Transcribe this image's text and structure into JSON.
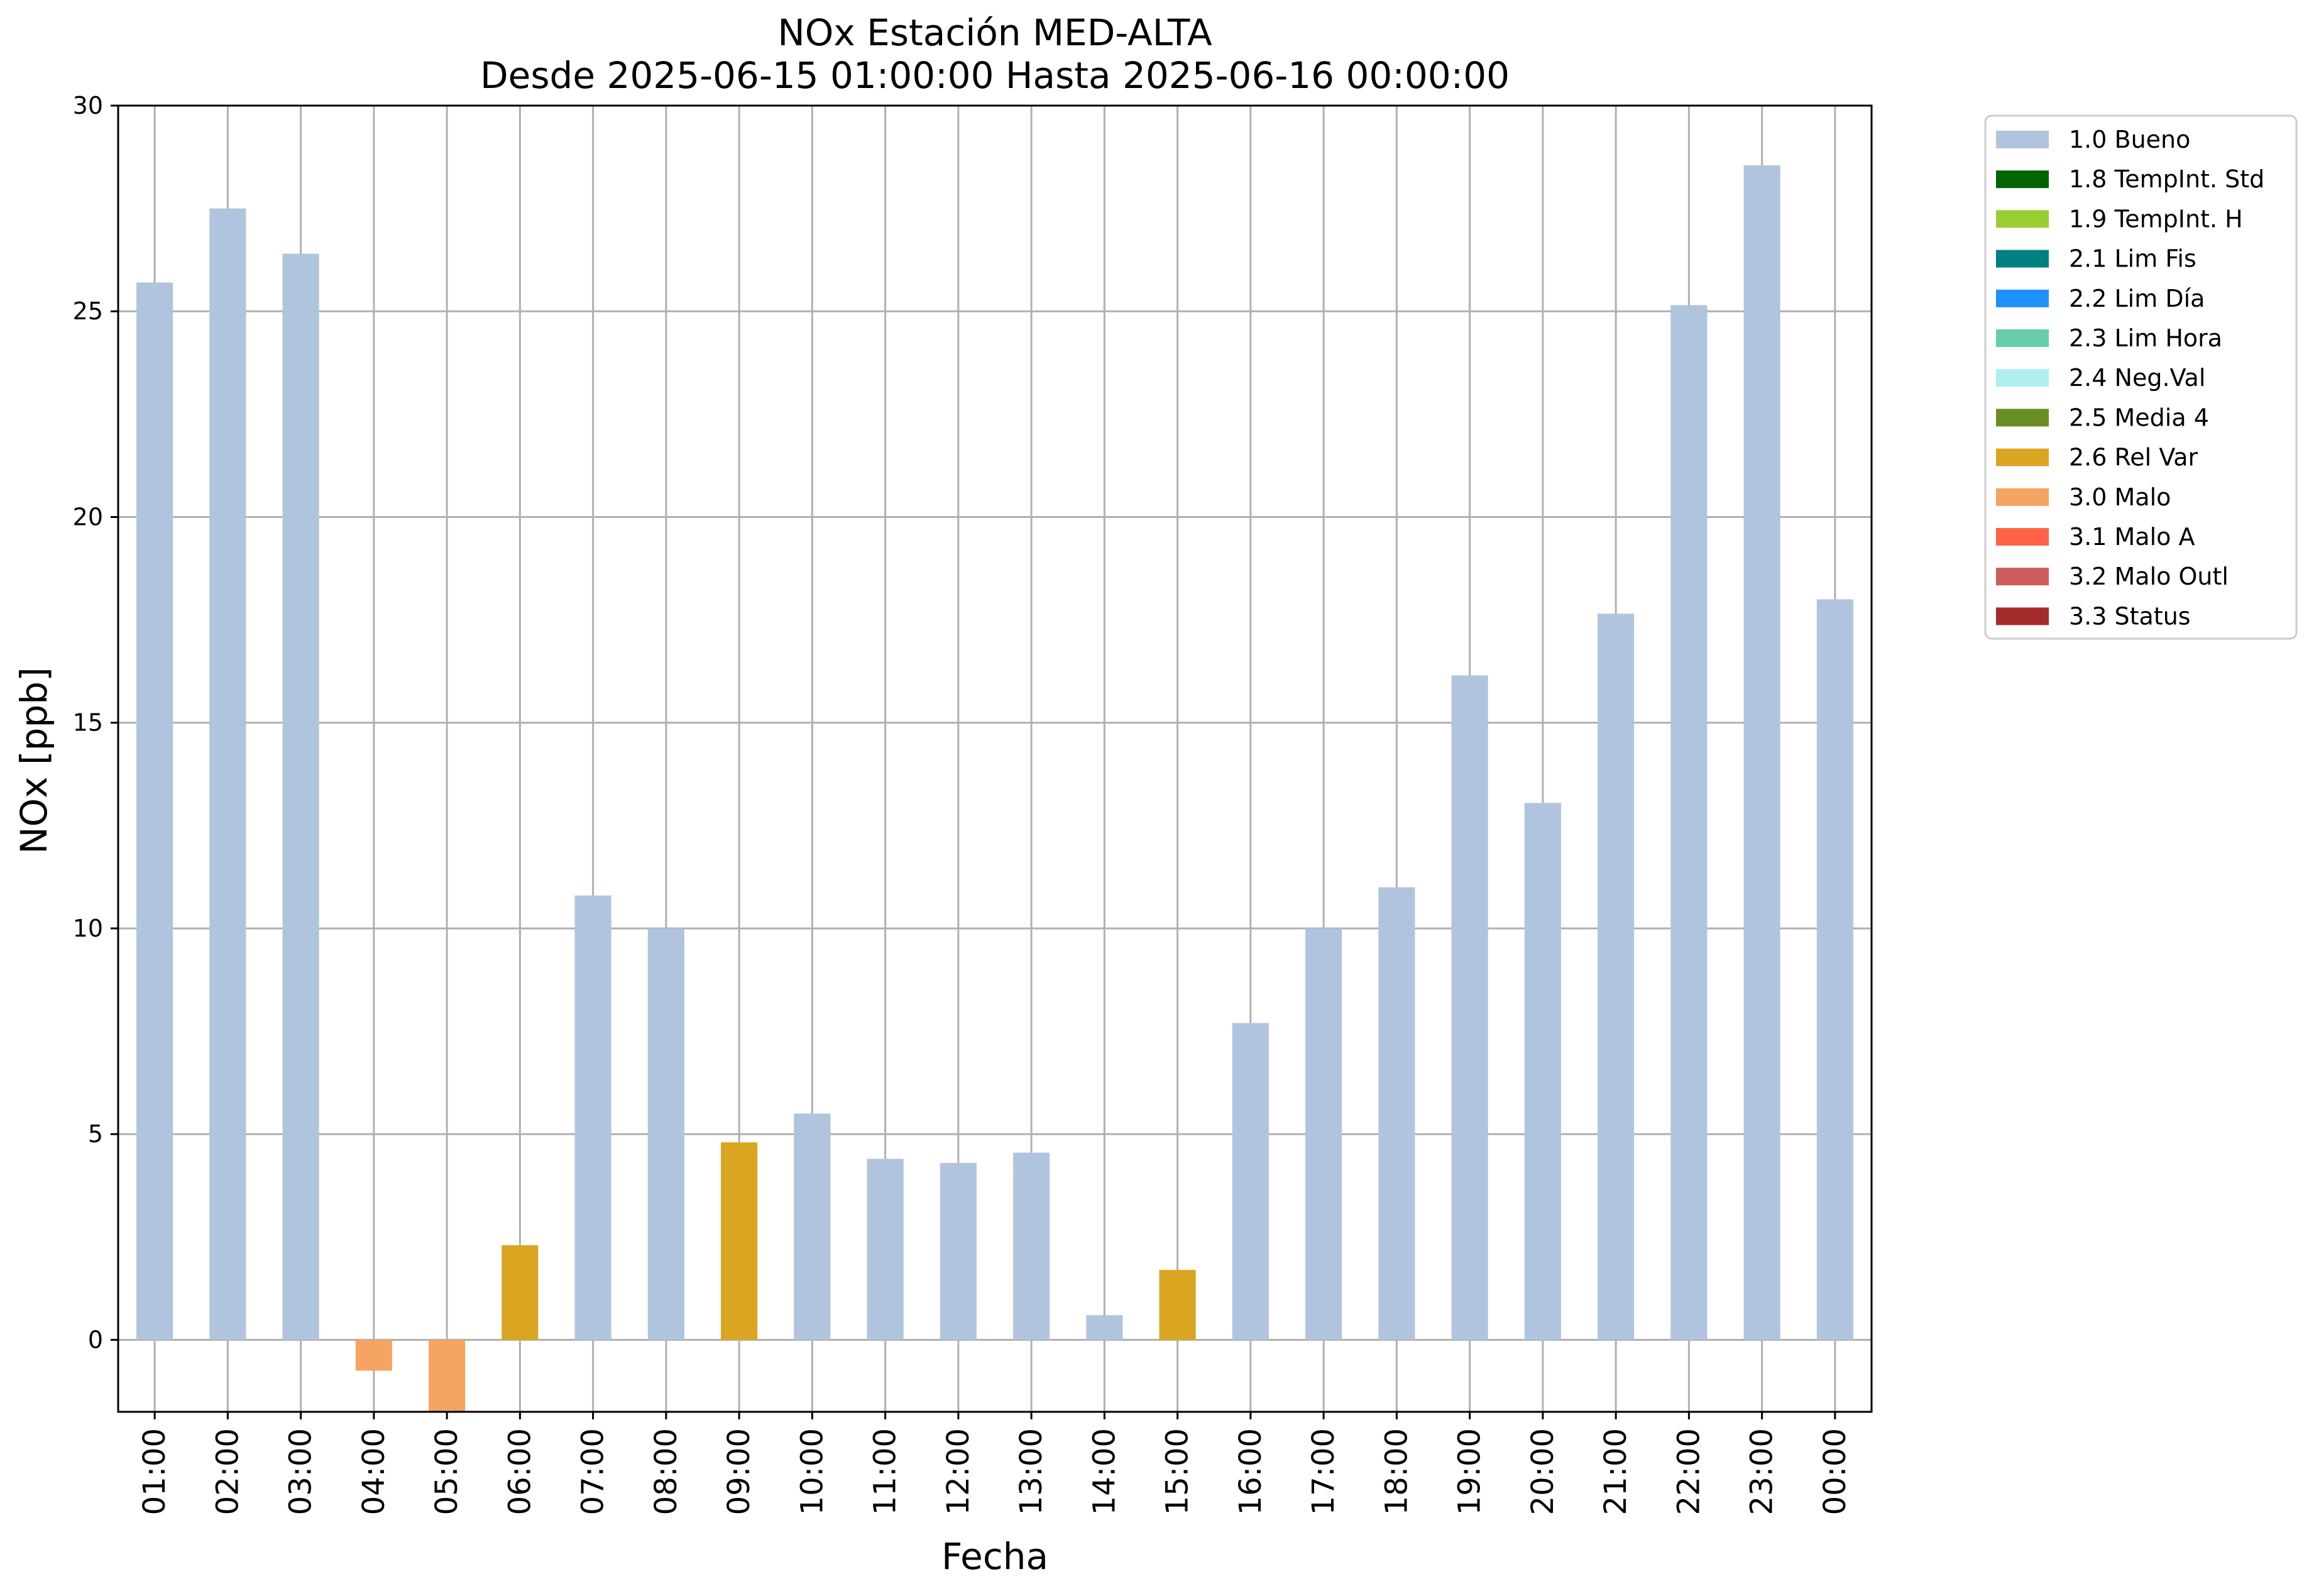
{
  "chart_data": {
    "type": "bar",
    "title": "NOx Estación MED-ALTA",
    "subtitle": "Desde 2025-06-15 01:00:00 Hasta 2025-06-16 00:00:00",
    "xlabel": "Fecha",
    "ylabel": "NOx [ppb]",
    "ylim": [
      -1.75,
      30
    ],
    "yticks": [
      "0",
      "5",
      "10",
      "15",
      "20",
      "25",
      "30"
    ],
    "grid": true,
    "legend_position": "outside-right-top",
    "categories": [
      "01:00",
      "02:00",
      "03:00",
      "04:00",
      "05:00",
      "06:00",
      "07:00",
      "08:00",
      "09:00",
      "10:00",
      "11:00",
      "12:00",
      "13:00",
      "14:00",
      "15:00",
      "16:00",
      "17:00",
      "18:00",
      "19:00",
      "20:00",
      "21:00",
      "22:00",
      "23:00",
      "00:00"
    ],
    "values": [
      25.7,
      27.5,
      26.4,
      -0.75,
      -1.75,
      2.3,
      10.8,
      10.0,
      4.8,
      5.5,
      4.4,
      4.3,
      4.55,
      0.6,
      1.7,
      7.7,
      10.0,
      11.0,
      16.15,
      13.05,
      17.65,
      25.15,
      28.55,
      18.0
    ],
    "flags": [
      "1.0",
      "1.0",
      "1.0",
      "3.0",
      "3.0",
      "2.6",
      "1.0",
      "1.0",
      "2.6",
      "1.0",
      "1.0",
      "1.0",
      "1.0",
      "1.0",
      "2.6",
      "1.0",
      "1.0",
      "1.0",
      "1.0",
      "1.0",
      "1.0",
      "1.0",
      "1.0",
      "1.0"
    ],
    "legend": [
      {
        "code": "1.0",
        "label": "1.0 Bueno",
        "color": "#b0c4de"
      },
      {
        "code": "1.8",
        "label": "1.8 TempInt. Std",
        "color": "#006400"
      },
      {
        "code": "1.9",
        "label": "1.9 TempInt. H",
        "color": "#9acd32"
      },
      {
        "code": "2.1",
        "label": "2.1 Lim Fis",
        "color": "#008080"
      },
      {
        "code": "2.2",
        "label": "2.2 Lim Día",
        "color": "#1e90ff"
      },
      {
        "code": "2.3",
        "label": "2.3 Lim Hora",
        "color": "#66cdaa"
      },
      {
        "code": "2.4",
        "label": "2.4 Neg.Val",
        "color": "#afeeee"
      },
      {
        "code": "2.5",
        "label": "2.5 Media 4",
        "color": "#6b8e23"
      },
      {
        "code": "2.6",
        "label": "2.6 Rel Var",
        "color": "#daa520"
      },
      {
        "code": "3.0",
        "label": "3.0 Malo",
        "color": "#f4a460"
      },
      {
        "code": "3.1",
        "label": "3.1 Malo A",
        "color": "#ff6347"
      },
      {
        "code": "3.2",
        "label": "3.2 Malo Outl",
        "color": "#cd5c5c"
      },
      {
        "code": "3.3",
        "label": "3.3 Status",
        "color": "#a52a2a"
      }
    ]
  }
}
